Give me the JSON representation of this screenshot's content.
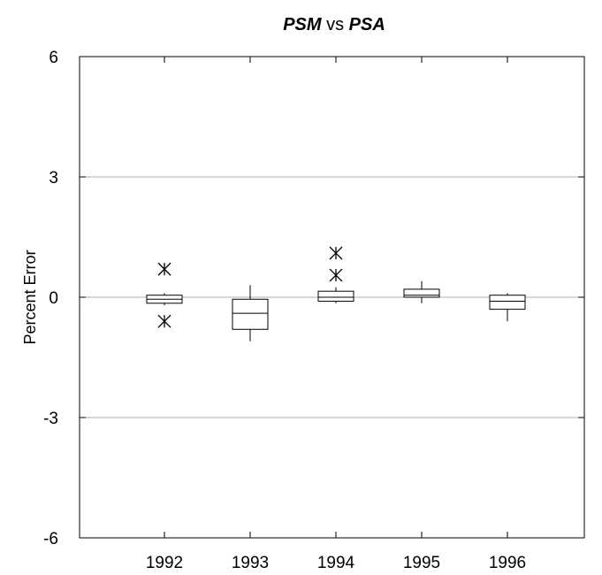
{
  "chart_data": {
    "type": "box",
    "title": {
      "part1": "PSM",
      "part2": " vs ",
      "part3": "PSA"
    },
    "xlabel": "",
    "ylabel": "Percent Error",
    "ylim": [
      -6,
      6
    ],
    "yticks": [
      "6",
      "3",
      "0",
      "-3",
      "-6"
    ],
    "ytick_values": [
      6,
      3,
      0,
      -3,
      -6
    ],
    "categories": [
      "1992",
      "1993",
      "1994",
      "1995",
      "1996"
    ],
    "grid": {
      "horizontal_at": [
        3,
        0,
        -3
      ],
      "color": "#b0b0b0"
    },
    "boxes": [
      {
        "category": "1992",
        "whisker_low": -0.2,
        "q1": -0.15,
        "median": -0.05,
        "q3": 0.05,
        "whisker_high": 0.1,
        "outliers": [
          0.7,
          -0.6
        ]
      },
      {
        "category": "1993",
        "whisker_low": -1.1,
        "q1": -0.8,
        "median": -0.4,
        "q3": -0.05,
        "whisker_high": 0.3,
        "outliers": []
      },
      {
        "category": "1994",
        "whisker_low": -0.15,
        "q1": -0.1,
        "median": 0.0,
        "q3": 0.15,
        "whisker_high": 0.25,
        "outliers": [
          1.1,
          0.55
        ]
      },
      {
        "category": "1995",
        "whisker_low": -0.15,
        "q1": 0.0,
        "median": 0.05,
        "q3": 0.2,
        "whisker_high": 0.4,
        "outliers": []
      },
      {
        "category": "1996",
        "whisker_low": -0.6,
        "q1": -0.3,
        "median": -0.1,
        "q3": 0.05,
        "whisker_high": 0.1,
        "outliers": []
      }
    ]
  }
}
